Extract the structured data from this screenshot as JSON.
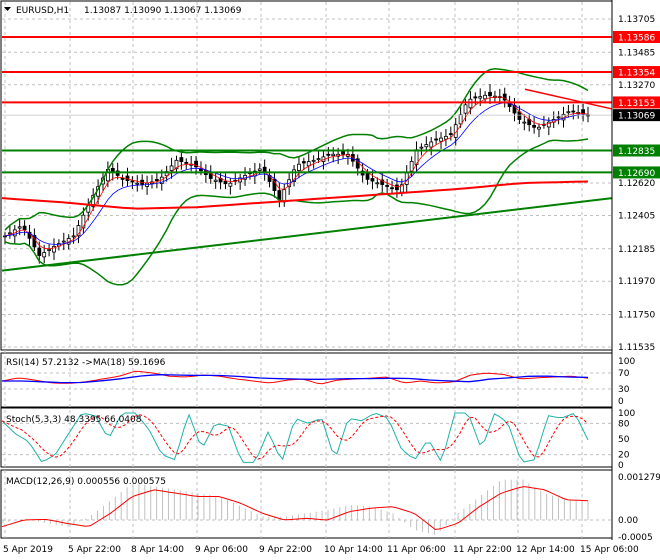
{
  "chart_data": {
    "type": "candlestick",
    "title": "EURUSD,H1 1.13087 1.13090 1.13067 1.13069",
    "symbol": "EURUSD,H1",
    "ohlc_header": "1.13087 1.13090 1.13067 1.13069",
    "ylim": [
      1.11515,
      1.13817
    ],
    "y_ticks": [
      "1.13705",
      "1.13485",
      "1.13270",
      "1.12620",
      "1.12405",
      "1.12185",
      "1.11970",
      "1.11750",
      "1.11535"
    ],
    "y_tick_values": [
      1.13705,
      1.13485,
      1.1327,
      1.1262,
      1.12405,
      1.12185,
      1.1197,
      1.1175,
      1.11535
    ],
    "x_ticks": [
      "5 Apr 2019",
      "5 Apr 22:00",
      "8 Apr 14:00",
      "9 Apr 06:00",
      "9 Apr 22:00",
      "10 Apr 14:00",
      "11 Apr 06:00",
      "11 Apr 22:00",
      "12 Apr 14:00",
      "15 Apr 06:00"
    ],
    "closes": [
      1.1227,
      1.1234,
      1.1214,
      1.1221,
      1.1227,
      1.1251,
      1.1271,
      1.1264,
      1.1261,
      1.1264,
      1.1277,
      1.1274,
      1.1265,
      1.1261,
      1.1267,
      1.1272,
      1.1251,
      1.1274,
      1.1277,
      1.1281,
      1.1281,
      1.1265,
      1.1261,
      1.1257,
      1.1284,
      1.129,
      1.1294,
      1.1317,
      1.132,
      1.1319,
      1.1304,
      1.1298,
      1.1304,
      1.131,
      1.13069
    ],
    "ma200": [
      1.1252,
      1.1249,
      1.1245,
      1.1246,
      1.1249,
      1.1252,
      1.1255,
      1.1258,
      1.1262,
      1.1263
    ],
    "horizontal_levels": [
      {
        "value": 1.13586,
        "label": "1.13586",
        "color": "#ff0000"
      },
      {
        "value": 1.13354,
        "label": "1.13354",
        "color": "#ff0000"
      },
      {
        "value": 1.13153,
        "label": "1.13153",
        "color": "#ff0000"
      },
      {
        "value": 1.12835,
        "label": "1.12835",
        "color": "#008000"
      },
      {
        "value": 1.1269,
        "label": "1.12690",
        "color": "#008000"
      }
    ],
    "current_price": {
      "value": 1.13069,
      "label": "1.13069"
    },
    "support_trendline": [
      1.1204,
      1.1252
    ],
    "resistance_trendline": [
      1.1324,
      1.1311
    ],
    "rsi": {
      "label": "RSI(14) 57.2132  ->MA(18) 59.1696",
      "ticks": [
        "100",
        "70",
        "30",
        "0"
      ],
      "values": [
        50,
        58,
        52,
        45,
        44,
        48,
        55,
        62,
        75,
        70,
        62,
        60,
        65,
        62,
        55,
        50,
        45,
        52,
        55,
        42,
        52,
        55,
        57,
        60,
        45,
        50,
        45,
        48,
        65,
        70,
        66,
        55,
        58,
        60,
        62,
        57
      ],
      "ma": [
        50,
        50,
        48,
        46,
        46,
        50,
        55,
        62,
        66,
        65,
        64,
        64,
        62,
        58,
        56,
        55,
        54,
        55,
        56,
        56,
        57,
        56,
        52,
        50,
        48,
        55,
        58,
        62,
        62,
        60,
        59
      ]
    },
    "stoch": {
      "label": "Stoch(5,3,3) 48.3395 66.0408",
      "ticks": [
        "100",
        "80",
        "50",
        "20",
        "0"
      ],
      "values": [
        85,
        60,
        45,
        5,
        20,
        60,
        100,
        95,
        50,
        100,
        100,
        70,
        20,
        10,
        100,
        30,
        80,
        75,
        5,
        5,
        65,
        5,
        90,
        80,
        90,
        10,
        90,
        85,
        100,
        90,
        30,
        10,
        50,
        5,
        100,
        100,
        30,
        100,
        80,
        5,
        10,
        95,
        90,
        100,
        48
      ]
    },
    "macd": {
      "label": "MACD(12,26,9) 0.000556 0.000575",
      "ticks": [
        "0.001279",
        "0.00",
        "-0.0005"
      ],
      "values": [
        -0.0002,
        0,
        2e-05,
        -0.0001,
        -0.0002,
        0.0002,
        0.0007,
        0.0009,
        0.0008,
        0.0007,
        0.0007,
        0.0005,
        0.0002,
        0,
        5e-05,
        0,
        0.00025,
        0.00035,
        0.0004,
        0.0002,
        -0.0003,
        -0.0001,
        0.0004,
        0.0008,
        0.001,
        0.0009,
        0.0006,
        0.000575
      ],
      "histogram": [
        -0.0001,
        5e-05,
        -0.0001,
        -0.0002,
        0.0001,
        0.0006,
        0.0011,
        0.001,
        0.0009,
        0.0008,
        0.0007,
        0.0004,
        0.0001,
        0.0001,
        0.0002,
        0.0003,
        0.00045,
        0.0004,
        0.0002,
        -0.0003,
        -0.00045,
        0.0002,
        0.0007,
        0.0012,
        0.0012,
        0.0008,
        0.0006,
        0.000556
      ]
    },
    "colors": {
      "bull": "#ffffff",
      "bear": "#000000",
      "rsi": "#ff0000",
      "rsi_ma": "#0000ff",
      "stoch_main": "#20b2aa",
      "stoch_signal": "#ff0000",
      "macd_signal": "#ff0000",
      "macd_hist": "#c0c0c0",
      "bands": "#008000",
      "ma200": "#ff0000"
    }
  }
}
